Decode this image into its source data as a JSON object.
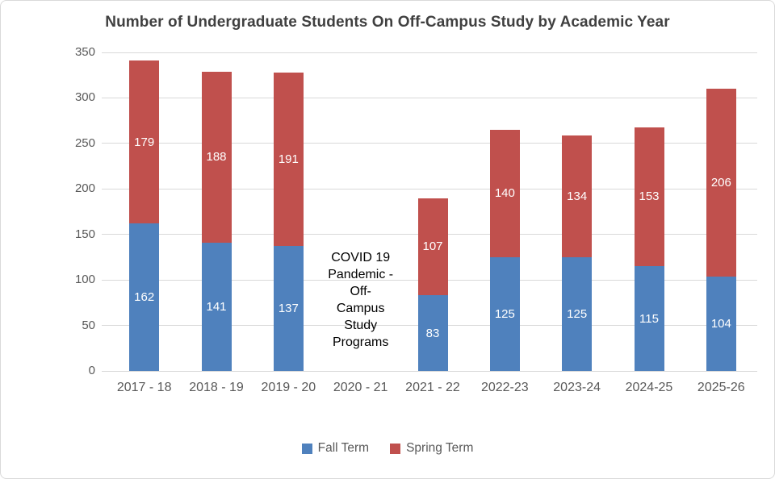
{
  "chart_data": {
    "type": "bar",
    "stacked": true,
    "title": "Number of Undergraduate Students On Off-Campus Study by Academic Year",
    "categories": [
      "2017 - 18",
      "2018 - 19",
      "2019 - 20",
      "2020 - 21",
      "2021 - 22",
      "2022-23",
      "2023-24",
      "2024-25",
      "2025-26"
    ],
    "series": [
      {
        "name": "Fall Term",
        "color": "#4F81BD",
        "values": [
          162,
          141,
          137,
          0,
          83,
          125,
          125,
          115,
          104
        ]
      },
      {
        "name": "Spring Term",
        "color": "#C0504D",
        "values": [
          179,
          188,
          191,
          0,
          107,
          140,
          134,
          153,
          206
        ]
      }
    ],
    "xlabel": "",
    "ylabel": "",
    "ylim": [
      0,
      350
    ],
    "yticks": [
      0,
      50,
      100,
      150,
      200,
      250,
      300,
      350
    ],
    "grid": true,
    "legend_position": "bottom",
    "annotation": {
      "category": "2020 - 21",
      "text": "COVID 19 Pandemic - Off-Campus Study Programs",
      "lines": [
        "COVID 19",
        "Pandemic -",
        "Off-",
        "Campus",
        "Study",
        "Programs"
      ]
    },
    "colors": {
      "background": "#FFFFFF",
      "frame_border": "#D9D9D9",
      "gridline": "#D9D9D9",
      "axis_text": "#595959",
      "title_text": "#404040",
      "bar_value_text": "#FFFFFF",
      "annotation_text": "#000000"
    }
  }
}
